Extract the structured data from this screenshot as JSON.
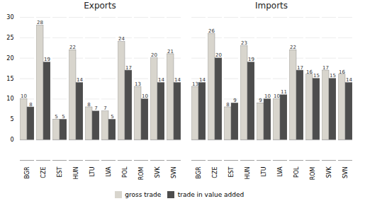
{
  "chart_data": [
    {
      "type": "bar",
      "title": "Exports",
      "categories": [
        "BGR",
        "CZE",
        "EST",
        "HUN",
        "LTU",
        "LVA",
        "POL",
        "ROM",
        "SVK",
        "SVN"
      ],
      "series": [
        {
          "name": "gross trade",
          "color": "#d8d5cd",
          "values": [
            10,
            28,
            5,
            22,
            8,
            7,
            24,
            13,
            20,
            21
          ]
        },
        {
          "name": "trade in value added",
          "color": "#4d4d4d",
          "values": [
            8,
            19,
            5,
            14,
            7,
            5,
            17,
            10,
            14,
            14
          ]
        }
      ],
      "ylim": [
        -5,
        30
      ],
      "yticks": [
        0,
        5,
        10,
        15,
        20,
        25,
        30
      ],
      "grid": true,
      "data_labels": true,
      "legend": "bottom"
    },
    {
      "type": "bar",
      "title": "Imports",
      "categories": [
        "BGR",
        "CZE",
        "EST",
        "HUN",
        "LTU",
        "LVA",
        "POL",
        "ROM",
        "SVK",
        "SVN"
      ],
      "series": [
        {
          "name": "gross trade",
          "color": "#d8d5cd",
          "values": [
            13,
            26,
            8,
            23,
            9,
            10,
            22,
            16,
            17,
            16
          ]
        },
        {
          "name": "trade in value added",
          "color": "#4d4d4d",
          "values": [
            14,
            20,
            9,
            19,
            10,
            11,
            17,
            15,
            15,
            14
          ]
        }
      ],
      "ylim": [
        -5,
        30
      ],
      "yticks": [
        0,
        5,
        10,
        15,
        20,
        25,
        30
      ],
      "grid": true,
      "data_labels": true,
      "legend": "bottom",
      "tick_labels": "x"
    }
  ]
}
